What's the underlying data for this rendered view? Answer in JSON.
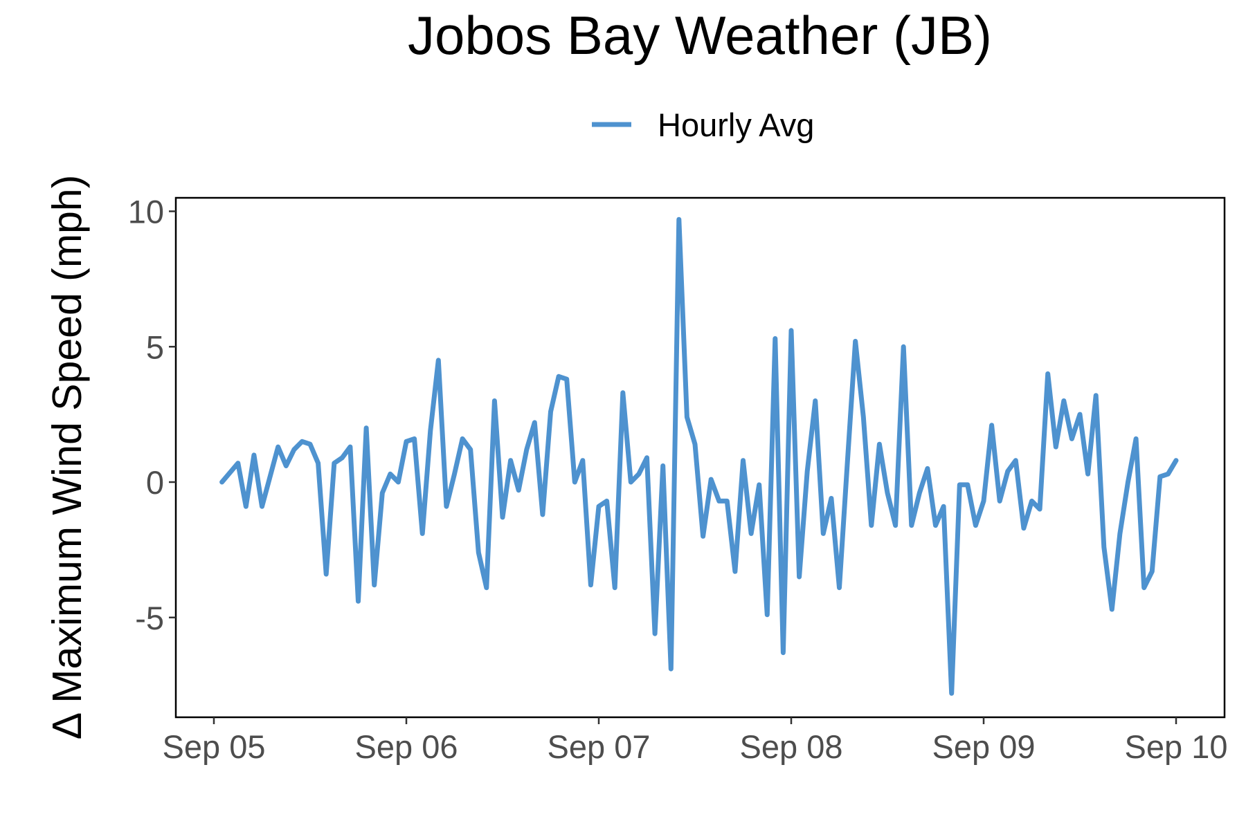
{
  "chart_data": {
    "type": "line",
    "title": "Jobos Bay Weather (JB)",
    "xlabel": "",
    "ylabel": "Δ Maximum Wind Speed (mph)",
    "x_tick_labels": [
      "Sep 05",
      "Sep 06",
      "Sep 07",
      "Sep 08",
      "Sep 09",
      "Sep 10"
    ],
    "y_tick_labels": [
      "-5",
      "0",
      "5",
      "10"
    ],
    "y_ticks": [
      -5,
      0,
      5,
      10
    ],
    "x_range_days": [
      "Sep 04 22:00",
      "Sep 10 03:00"
    ],
    "ylim": [
      -8.8,
      10.6
    ],
    "grid": false,
    "legend_position": "top",
    "series": [
      {
        "name": "Hourly Avg",
        "color": "#4e92cf",
        "points": [
          [
            "Sep 05 01:00",
            0.0
          ],
          [
            "Sep 05 03:00",
            0.7
          ],
          [
            "Sep 05 04:00",
            -0.9
          ],
          [
            "Sep 05 05:00",
            1.0
          ],
          [
            "Sep 05 06:00",
            -0.9
          ],
          [
            "Sep 05 08:00",
            1.3
          ],
          [
            "Sep 05 09:00",
            0.6
          ],
          [
            "Sep 05 10:00",
            1.2
          ],
          [
            "Sep 05 11:00",
            1.5
          ],
          [
            "Sep 05 12:00",
            1.4
          ],
          [
            "Sep 05 13:00",
            0.7
          ],
          [
            "Sep 05 14:00",
            -3.4
          ],
          [
            "Sep 05 15:00",
            0.7
          ],
          [
            "Sep 05 16:00",
            0.9
          ],
          [
            "Sep 05 17:00",
            1.3
          ],
          [
            "Sep 05 18:00",
            -4.4
          ],
          [
            "Sep 05 19:00",
            2.0
          ],
          [
            "Sep 05 20:00",
            -3.8
          ],
          [
            "Sep 05 21:00",
            -0.4
          ],
          [
            "Sep 05 22:00",
            0.3
          ],
          [
            "Sep 05 23:00",
            0.0
          ],
          [
            "Sep 06 00:00",
            1.5
          ],
          [
            "Sep 06 01:00",
            1.6
          ],
          [
            "Sep 06 02:00",
            -1.9
          ],
          [
            "Sep 06 03:00",
            1.9
          ],
          [
            "Sep 06 04:00",
            4.5
          ],
          [
            "Sep 06 05:00",
            -0.9
          ],
          [
            "Sep 06 06:00",
            0.3
          ],
          [
            "Sep 06 07:00",
            1.6
          ],
          [
            "Sep 06 08:00",
            1.2
          ],
          [
            "Sep 06 09:00",
            -2.6
          ],
          [
            "Sep 06 10:00",
            -3.9
          ],
          [
            "Sep 06 11:00",
            3.0
          ],
          [
            "Sep 06 12:00",
            -1.3
          ],
          [
            "Sep 06 13:00",
            0.8
          ],
          [
            "Sep 06 14:00",
            -0.3
          ],
          [
            "Sep 06 15:00",
            1.2
          ],
          [
            "Sep 06 16:00",
            2.2
          ],
          [
            "Sep 06 17:00",
            -1.2
          ],
          [
            "Sep 06 18:00",
            2.6
          ],
          [
            "Sep 06 19:00",
            3.9
          ],
          [
            "Sep 06 20:00",
            3.8
          ],
          [
            "Sep 06 21:00",
            0.0
          ],
          [
            "Sep 06 22:00",
            0.8
          ],
          [
            "Sep 06 23:00",
            -3.8
          ],
          [
            "Sep 07 00:00",
            -0.9
          ],
          [
            "Sep 07 01:00",
            -0.7
          ],
          [
            "Sep 07 02:00",
            -3.9
          ],
          [
            "Sep 07 03:00",
            3.3
          ],
          [
            "Sep 07 04:00",
            0.0
          ],
          [
            "Sep 07 05:00",
            0.3
          ],
          [
            "Sep 07 06:00",
            0.9
          ],
          [
            "Sep 07 07:00",
            -5.6
          ],
          [
            "Sep 07 08:00",
            0.6
          ],
          [
            "Sep 07 09:00",
            -6.9
          ],
          [
            "Sep 07 10:00",
            9.7
          ],
          [
            "Sep 07 11:00",
            2.4
          ],
          [
            "Sep 07 12:00",
            1.4
          ],
          [
            "Sep 07 13:00",
            -2.0
          ],
          [
            "Sep 07 14:00",
            0.1
          ],
          [
            "Sep 07 15:00",
            -0.7
          ],
          [
            "Sep 07 16:00",
            -0.7
          ],
          [
            "Sep 07 17:00",
            -3.3
          ],
          [
            "Sep 07 18:00",
            0.8
          ],
          [
            "Sep 07 19:00",
            -1.9
          ],
          [
            "Sep 07 20:00",
            -0.1
          ],
          [
            "Sep 07 21:00",
            -4.9
          ],
          [
            "Sep 07 22:00",
            5.3
          ],
          [
            "Sep 07 23:00",
            -6.3
          ],
          [
            "Sep 08 00:00",
            5.6
          ],
          [
            "Sep 08 01:00",
            -3.5
          ],
          [
            "Sep 08 02:00",
            0.4
          ],
          [
            "Sep 08 03:00",
            3.0
          ],
          [
            "Sep 08 04:00",
            -1.9
          ],
          [
            "Sep 08 05:00",
            -0.6
          ],
          [
            "Sep 08 06:00",
            -3.9
          ],
          [
            "Sep 08 07:00",
            0.7
          ],
          [
            "Sep 08 08:00",
            5.2
          ],
          [
            "Sep 08 09:00",
            2.4
          ],
          [
            "Sep 08 10:00",
            -1.6
          ],
          [
            "Sep 08 11:00",
            1.4
          ],
          [
            "Sep 08 12:00",
            -0.4
          ],
          [
            "Sep 08 13:00",
            -1.6
          ],
          [
            "Sep 08 14:00",
            5.0
          ],
          [
            "Sep 08 15:00",
            -1.6
          ],
          [
            "Sep 08 16:00",
            -0.4
          ],
          [
            "Sep 08 17:00",
            0.5
          ],
          [
            "Sep 08 18:00",
            -1.6
          ],
          [
            "Sep 08 19:00",
            -0.9
          ],
          [
            "Sep 08 20:00",
            -7.8
          ],
          [
            "Sep 08 21:00",
            -0.1
          ],
          [
            "Sep 08 22:00",
            -0.1
          ],
          [
            "Sep 08 23:00",
            -1.6
          ],
          [
            "Sep 09 00:00",
            -0.7
          ],
          [
            "Sep 09 01:00",
            2.1
          ],
          [
            "Sep 09 02:00",
            -0.7
          ],
          [
            "Sep 09 03:00",
            0.4
          ],
          [
            "Sep 09 04:00",
            0.8
          ],
          [
            "Sep 09 05:00",
            -1.7
          ],
          [
            "Sep 09 06:00",
            -0.7
          ],
          [
            "Sep 09 07:00",
            -1.0
          ],
          [
            "Sep 09 08:00",
            4.0
          ],
          [
            "Sep 09 09:00",
            1.3
          ],
          [
            "Sep 09 10:00",
            3.0
          ],
          [
            "Sep 09 11:00",
            1.6
          ],
          [
            "Sep 09 12:00",
            2.5
          ],
          [
            "Sep 09 13:00",
            0.3
          ],
          [
            "Sep 09 14:00",
            3.2
          ],
          [
            "Sep 09 15:00",
            -2.4
          ],
          [
            "Sep 09 16:00",
            -4.7
          ],
          [
            "Sep 09 17:00",
            -1.9
          ],
          [
            "Sep 09 18:00",
            0.0
          ],
          [
            "Sep 09 19:00",
            1.6
          ],
          [
            "Sep 09 20:00",
            -3.9
          ],
          [
            "Sep 09 21:00",
            -3.3
          ],
          [
            "Sep 09 22:00",
            0.2
          ],
          [
            "Sep 09 23:00",
            0.3
          ],
          [
            "Sep 10 00:00",
            0.8
          ]
        ]
      }
    ]
  }
}
